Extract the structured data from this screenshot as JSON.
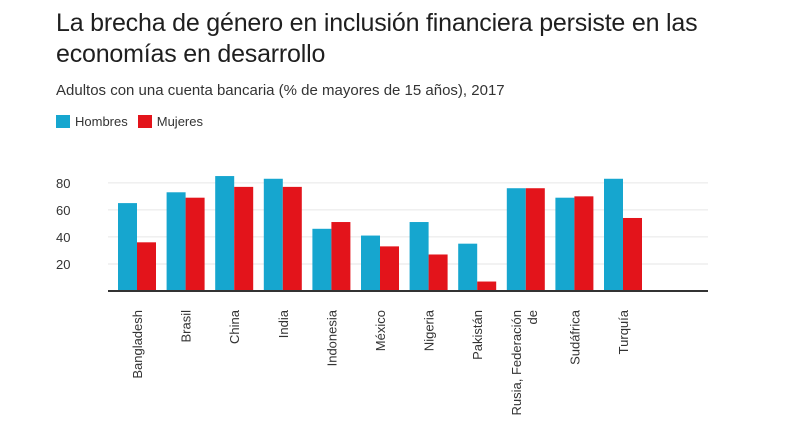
{
  "title": "La brecha de género en inclusión financiera persiste en las economías en desarrollo",
  "subtitle": "Adultos con una cuenta bancaria (% de mayores de 15 años), 2017",
  "colors": {
    "hombres": "#16a6cf",
    "mujeres": "#e3141b",
    "grid": "#e6e6e6",
    "axis": "#333333"
  },
  "chart_data": {
    "type": "bar",
    "categories": [
      "Bangladesh",
      "Brasil",
      "China",
      "India",
      "Indonesia",
      "México",
      "Nigeria",
      "Pakistán",
      "Rusia, Federación de",
      "Sudáfrica",
      "Turquía"
    ],
    "series": [
      {
        "name": "Hombres",
        "values": [
          65,
          73,
          85,
          83,
          46,
          41,
          51,
          35,
          76,
          69,
          83
        ]
      },
      {
        "name": "Mujeres",
        "values": [
          36,
          69,
          77,
          77,
          51,
          33,
          27,
          7,
          76,
          70,
          54
        ]
      }
    ],
    "yticks": [
      20,
      40,
      60,
      80
    ],
    "ylim": [
      0,
      88
    ],
    "grid": true,
    "legend": "top-left",
    "xlabel": "",
    "ylabel": ""
  }
}
